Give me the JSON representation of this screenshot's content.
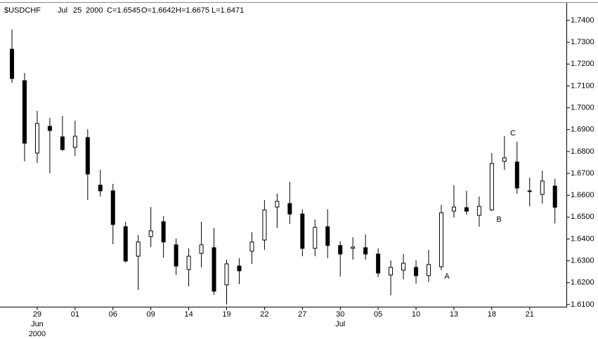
{
  "chart_data": {
    "type": "candlestick",
    "symbol": "$USDCHF",
    "header": [
      "Jul",
      "25",
      "2000",
      "C=1.6545",
      "O=1.6642",
      "H=1.6675",
      "L=1.6471"
    ],
    "categories": [
      null,
      null,
      "29",
      null,
      null,
      "01",
      null,
      null,
      "06",
      null,
      null,
      "09",
      null,
      null,
      "14",
      null,
      null,
      "19",
      null,
      null,
      "22",
      null,
      null,
      "27",
      null,
      null,
      "30",
      null,
      null,
      "05",
      null,
      null,
      "10",
      null,
      null,
      "13",
      null,
      null,
      "18",
      null,
      null,
      "21",
      null,
      null
    ],
    "months": [
      null,
      null,
      "Jun",
      null,
      null,
      null,
      null,
      null,
      null,
      null,
      null,
      null,
      null,
      null,
      null,
      null,
      null,
      null,
      null,
      null,
      null,
      null,
      null,
      null,
      null,
      null,
      "Jul",
      null,
      null,
      null,
      null,
      null,
      null,
      null,
      null,
      null,
      null,
      null,
      null,
      null,
      null,
      null,
      null,
      null
    ],
    "years": [
      null,
      null,
      "2000",
      null,
      null,
      null,
      null,
      null,
      null,
      null,
      null,
      null,
      null,
      null,
      null,
      null,
      null,
      null,
      null,
      null,
      null,
      null,
      null,
      null,
      null,
      null,
      null,
      null,
      null,
      null,
      null,
      null,
      null,
      null,
      null,
      null,
      null,
      null,
      null,
      null,
      null,
      null,
      null,
      null
    ],
    "open": [
      1.7268,
      1.7124,
      1.6793,
      1.6915,
      1.6867,
      1.6819,
      1.6864,
      1.6646,
      1.662,
      1.6456,
      1.6321,
      1.6411,
      1.6479,
      1.6373,
      1.626,
      1.6334,
      1.636,
      1.619,
      1.6276,
      1.6344,
      1.6395,
      1.6546,
      1.6562,
      1.6514,
      1.6357,
      1.6456,
      1.637,
      1.6357,
      1.636,
      1.6331,
      1.6235,
      1.6257,
      1.627,
      1.6232,
      1.6273,
      1.6527,
      1.6543,
      1.6508,
      1.6533,
      1.6755,
      1.6752,
      1.662,
      1.6604,
      1.6642
    ],
    "high": [
      1.7358,
      1.7159,
      1.6986,
      1.6954,
      1.6963,
      1.6941,
      1.6902,
      1.6716,
      1.6652,
      1.6479,
      1.6418,
      1.6546,
      1.6504,
      1.6402,
      1.6357,
      1.6479,
      1.645,
      1.6305,
      1.6312,
      1.6431,
      1.6578,
      1.6607,
      1.6662,
      1.6536,
      1.6488,
      1.6536,
      1.6389,
      1.6408,
      1.6421,
      1.6357,
      1.6302,
      1.6331,
      1.6302,
      1.635,
      1.6556,
      1.6646,
      1.662,
      1.6594,
      1.6793,
      1.687,
      1.6845,
      1.6681,
      1.6713,
      1.6675
    ],
    "low": [
      1.7114,
      1.6755,
      1.6748,
      1.67,
      1.6803,
      1.678,
      1.6578,
      1.6594,
      1.6376,
      1.6292,
      1.6167,
      1.6363,
      1.6315,
      1.6235,
      1.6183,
      1.627,
      1.6145,
      1.61,
      1.6193,
      1.6286,
      1.635,
      1.645,
      1.6469,
      1.6321,
      1.6321,
      1.6312,
      1.6228,
      1.6305,
      1.6305,
      1.6225,
      1.6142,
      1.6215,
      1.6196,
      1.6203,
      1.6257,
      1.6498,
      1.6511,
      1.6456,
      1.6527,
      1.6716,
      1.6607,
      1.6549,
      1.6562,
      1.6471
    ],
    "close": [
      1.7134,
      1.6838,
      1.6928,
      1.6896,
      1.6809,
      1.687,
      1.6697,
      1.662,
      1.6466,
      1.6299,
      1.6386,
      1.6437,
      1.6386,
      1.6276,
      1.6321,
      1.6373,
      1.6161,
      1.6286,
      1.6254,
      1.6386,
      1.6533,
      1.6572,
      1.6514,
      1.6357,
      1.6453,
      1.637,
      1.6331,
      1.6363,
      1.6331,
      1.6244,
      1.627,
      1.6289,
      1.6232,
      1.6283,
      1.652,
      1.6546,
      1.6527,
      1.6549,
      1.6745,
      1.6771,
      1.6633,
      1.6617,
      1.6665,
      1.6545
    ],
    "up_color": "#ffffff",
    "down_color": "#000000",
    "annotations": [
      "A",
      "B",
      "C"
    ],
    "ylim": [
      1.609,
      1.7477
    ],
    "yticks": [
      {
        "value": 1.61,
        "label": "1.6100"
      },
      {
        "value": 1.62,
        "label": "1.6200"
      },
      {
        "value": 1.63,
        "label": "1.6300"
      },
      {
        "value": 1.64,
        "label": "1.6400"
      },
      {
        "value": 1.65,
        "label": "1.6500"
      },
      {
        "value": 1.66,
        "label": "1.6600"
      },
      {
        "value": 1.67,
        "label": "1.6700"
      },
      {
        "value": 1.68,
        "label": "1.6800"
      },
      {
        "value": 1.69,
        "label": "1.6900"
      },
      {
        "value": 1.7,
        "label": "1.7000"
      },
      {
        "value": 1.71,
        "label": "1.7100"
      },
      {
        "value": 1.72,
        "label": "1.7200"
      },
      {
        "value": 1.73,
        "label": "1.7300"
      },
      {
        "value": 1.74,
        "label": "1.7400"
      }
    ]
  }
}
